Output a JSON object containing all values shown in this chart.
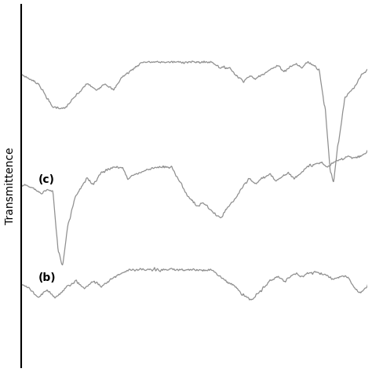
{
  "ylabel": "Transmittence",
  "line_color": "#909090",
  "line_width": 0.9,
  "background_color": "#ffffff"
}
